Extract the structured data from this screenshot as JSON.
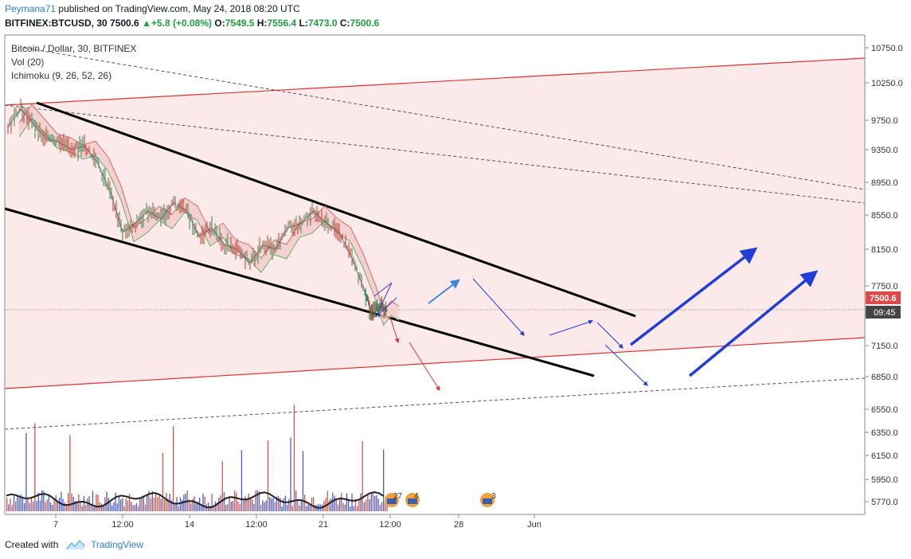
{
  "header": {
    "author": "Peymana71",
    "published": "published on TradingView.com, May 24, 2018 08:20 UTC",
    "symbol": "BITFINEX:BTCUSD, 30",
    "last": "7500.6",
    "change": "+5.8 (+0.08%)",
    "open_label": "O:",
    "open": "7549.5",
    "high_label": "H:",
    "high": "7556.4",
    "low_label": "L:",
    "low": "7473.0",
    "close_label": "C:",
    "close": "7500.6"
  },
  "legend": {
    "title": "Bitcoin / Dollar, 30, BITFINEX",
    "vol": "Vol (20)",
    "ichimoku": "Ichimoku (9, 26, 52, 26)"
  },
  "price_label": {
    "value": "7500.6",
    "countdown": "09:45"
  },
  "events": [
    {
      "count": "27"
    },
    {
      "count": "4"
    },
    {
      "count": "3"
    }
  ],
  "footer": {
    "created": "Created with",
    "brand": "TradingView"
  },
  "colors": {
    "up": "#1ea03c",
    "down": "#d23c3c",
    "channel_fill": "#fbe3e3",
    "channel_line": "#e03030",
    "arrow_blue": "#1f3fd6",
    "arrow_light": "#3f86d8"
  },
  "chart_data": {
    "type": "line",
    "y_ticks": [
      10750,
      10250,
      9750,
      9350,
      8950,
      8550,
      8150,
      7750,
      7150,
      6850,
      6550,
      6350,
      6150,
      5950,
      5770
    ],
    "x_ticks": [
      "7",
      "12:00",
      "14",
      "12:00",
      "21",
      "12:00",
      "28",
      "Jun"
    ],
    "price_series": [
      {
        "x": 0.0,
        "y": 9650
      },
      {
        "x": 0.5,
        "y": 9900
      },
      {
        "x": 1.0,
        "y": 9700
      },
      {
        "x": 1.5,
        "y": 9500
      },
      {
        "x": 2.0,
        "y": 9450
      },
      {
        "x": 2.5,
        "y": 9350
      },
      {
        "x": 3.0,
        "y": 9400
      },
      {
        "x": 3.5,
        "y": 9200
      },
      {
        "x": 4.0,
        "y": 8850
      },
      {
        "x": 4.5,
        "y": 8350
      },
      {
        "x": 5.0,
        "y": 8450
      },
      {
        "x": 5.5,
        "y": 8600
      },
      {
        "x": 6.0,
        "y": 8500
      },
      {
        "x": 6.5,
        "y": 8700
      },
      {
        "x": 7.0,
        "y": 8600
      },
      {
        "x": 7.5,
        "y": 8300
      },
      {
        "x": 8.0,
        "y": 8400
      },
      {
        "x": 8.5,
        "y": 8200
      },
      {
        "x": 9.0,
        "y": 8150
      },
      {
        "x": 9.5,
        "y": 8000
      },
      {
        "x": 10.0,
        "y": 8200
      },
      {
        "x": 10.5,
        "y": 8150
      },
      {
        "x": 11.0,
        "y": 8400
      },
      {
        "x": 11.5,
        "y": 8450
      },
      {
        "x": 12.0,
        "y": 8600
      },
      {
        "x": 12.5,
        "y": 8450
      },
      {
        "x": 13.0,
        "y": 8350
      },
      {
        "x": 13.5,
        "y": 8050
      },
      {
        "x": 14.0,
        "y": 7700
      },
      {
        "x": 14.3,
        "y": 7450
      },
      {
        "x": 14.6,
        "y": 7550
      },
      {
        "x": 14.9,
        "y": 7500
      }
    ]
  }
}
